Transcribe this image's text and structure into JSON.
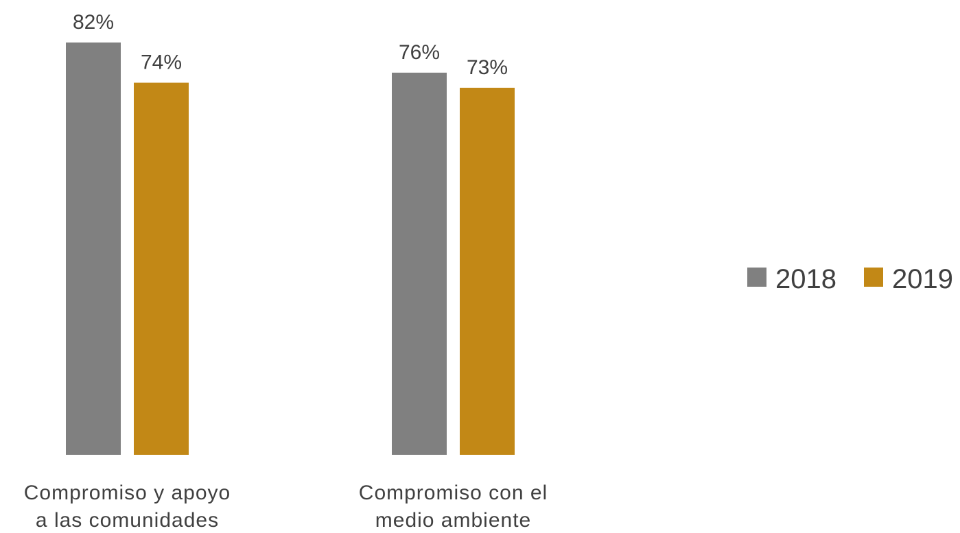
{
  "chart_data": {
    "type": "bar",
    "title": "",
    "xlabel": "",
    "ylabel": "",
    "ylim": [
      0,
      100
    ],
    "grid": false,
    "legend_position": "right",
    "value_format": "percent",
    "categories": [
      [
        "Compromiso y apoyo",
        "a las comunidades"
      ],
      [
        "Compromiso con el",
        "medio ambiente"
      ]
    ],
    "series": [
      {
        "name": "2018",
        "color": "#808080",
        "values": [
          82,
          76
        ],
        "labels": [
          "82%",
          "76%"
        ]
      },
      {
        "name": "2019",
        "color": "#C28816",
        "values": [
          74,
          73
        ],
        "labels": [
          "74%",
          "73%"
        ]
      }
    ]
  }
}
